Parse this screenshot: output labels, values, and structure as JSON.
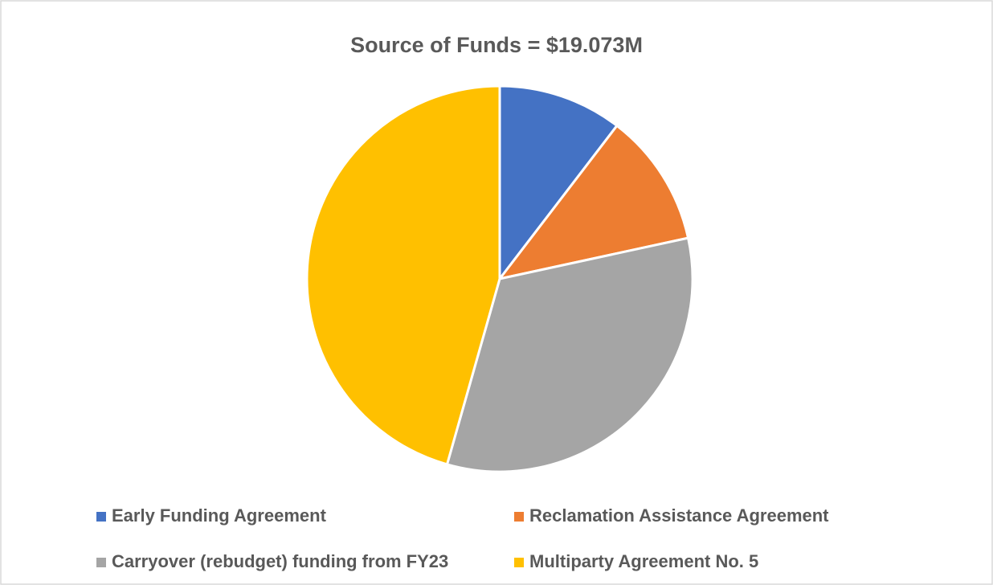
{
  "chart_data": {
    "type": "pie",
    "title": "Source of Funds = $19.073M",
    "categories": [
      "Early Funding Agreement",
      "Reclamation Assistance Agreement",
      "Carryover (rebudget) funding from FY23",
      "Multiparty Agreement No. 5"
    ],
    "values": [
      10.4,
      11.2,
      32.8,
      45.6
    ],
    "colors": [
      "#4472c4",
      "#ed7d31",
      "#a5a5a5",
      "#ffc000"
    ],
    "legend": "bottom"
  }
}
